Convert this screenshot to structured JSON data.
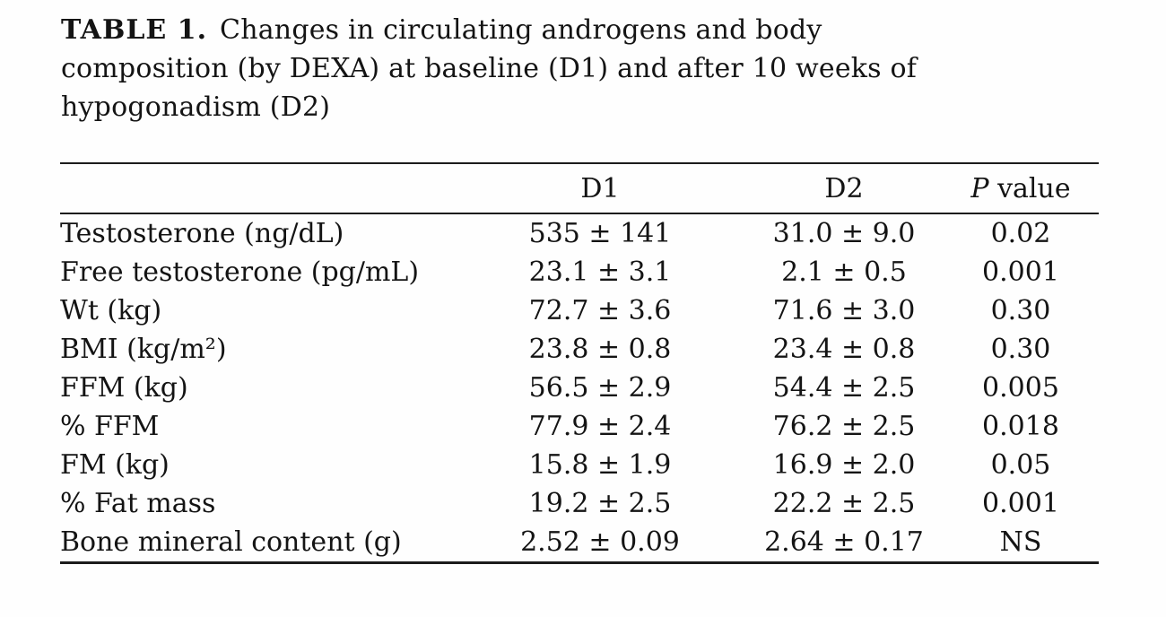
{
  "caption": {
    "label": "TABLE 1.",
    "line1": "Changes in circulating androgens and body",
    "line2": "composition (by DEXA) at baseline (D1) and after 10 weeks of",
    "line3": "hypogonadism (D2)"
  },
  "table": {
    "headers": {
      "metric": "",
      "d1": "D1",
      "d2": "D2",
      "p_italic": "P",
      "p_rest": " value"
    },
    "rows": [
      {
        "label": "Testosterone (ng/dL)",
        "d1": "535 ± 141",
        "d2": "31.0 ± 9.0",
        "p": "0.02"
      },
      {
        "label": "Free testosterone (pg/mL)",
        "d1": "23.1 ± 3.1",
        "d2": "2.1 ± 0.5",
        "p": "0.001"
      },
      {
        "label": "Wt (kg)",
        "d1": "72.7 ± 3.6",
        "d2": "71.6 ± 3.0",
        "p": "0.30"
      },
      {
        "label": "BMI (kg/m²)",
        "d1": "23.8 ± 0.8",
        "d2": "23.4 ± 0.8",
        "p": "0.30"
      },
      {
        "label": "FFM (kg)",
        "d1": "56.5 ± 2.9",
        "d2": "54.4 ± 2.5",
        "p": "0.005"
      },
      {
        "label": "% FFM",
        "d1": "77.9 ± 2.4",
        "d2": "76.2 ± 2.5",
        "p": "0.018"
      },
      {
        "label": "FM (kg)",
        "d1": "15.8 ± 1.9",
        "d2": "16.9 ± 2.0",
        "p": "0.05"
      },
      {
        "label": "% Fat mass",
        "d1": "19.2 ± 2.5",
        "d2": "22.2 ± 2.5",
        "p": "0.001"
      },
      {
        "label": "Bone mineral content (g)",
        "d1": "2.52 ± 0.09",
        "d2": "2.64 ± 0.17",
        "p": "NS"
      }
    ]
  }
}
